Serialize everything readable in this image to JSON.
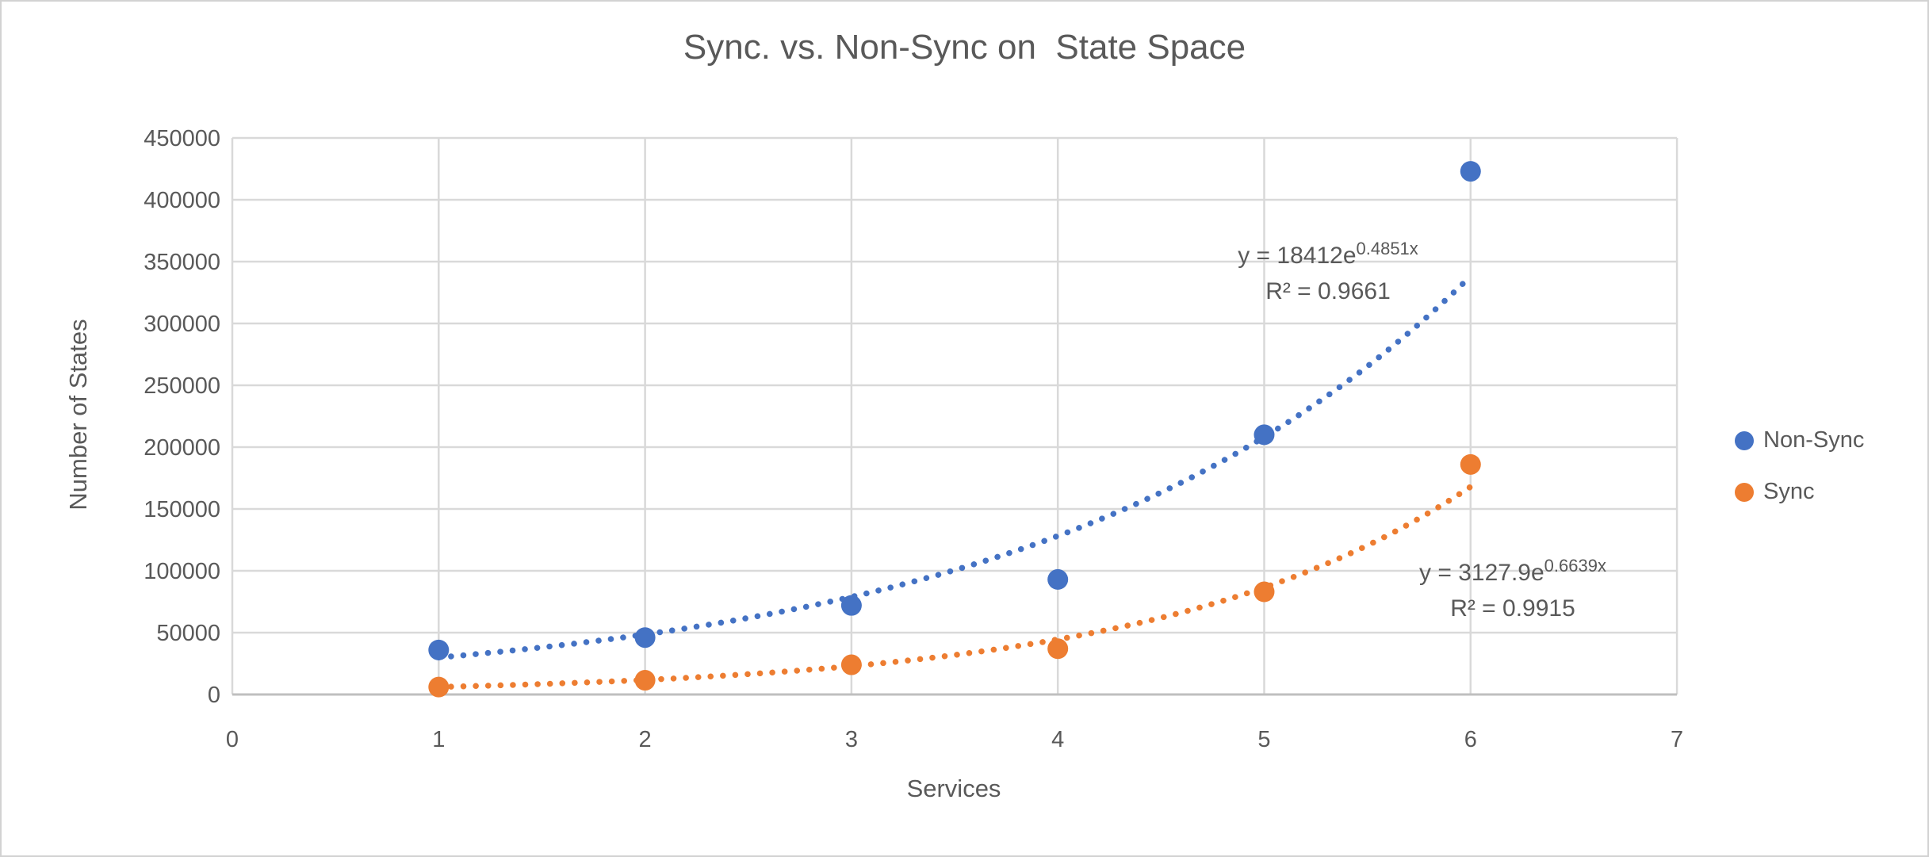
{
  "chart_data": {
    "type": "scatter",
    "title": "Sync. vs. Non-Sync on  State Space",
    "xlabel": "Services",
    "ylabel": "Number of States",
    "xlim": [
      0,
      7
    ],
    "ylim": [
      0,
      450000
    ],
    "x_ticks": [
      0,
      1,
      2,
      3,
      4,
      5,
      6,
      7
    ],
    "y_ticks": [
      0,
      50000,
      100000,
      150000,
      200000,
      250000,
      300000,
      350000,
      400000,
      450000
    ],
    "grid": true,
    "legend_position": "right",
    "x": [
      1,
      2,
      3,
      4,
      5,
      6
    ],
    "series": [
      {
        "name": "Non-Sync",
        "color": "#4472C4",
        "values": [
          36000,
          46000,
          72000,
          93000,
          210000,
          423000
        ],
        "trendline": {
          "type": "exponential",
          "a": 18412,
          "b": 0.4851,
          "x_range": [
            1,
            6
          ],
          "style": "dotted",
          "equation_base": "y = 18412e",
          "equation_exponent": "0.4851x",
          "r_squared": "R² = 0.9661"
        }
      },
      {
        "name": "Sync",
        "color": "#ED7D31",
        "values": [
          6000,
          11500,
          24000,
          37000,
          83000,
          186000
        ],
        "trendline": {
          "type": "exponential",
          "a": 3127.9,
          "b": 0.6639,
          "x_range": [
            1,
            6
          ],
          "style": "dotted",
          "equation_base": "y = 3127.9e",
          "equation_exponent": "0.6639x",
          "r_squared": "R² = 0.9915"
        }
      }
    ],
    "colors": {
      "gridline": "#D9D9D9",
      "axis_line": "#BFBFBF",
      "text": "#595959"
    }
  }
}
